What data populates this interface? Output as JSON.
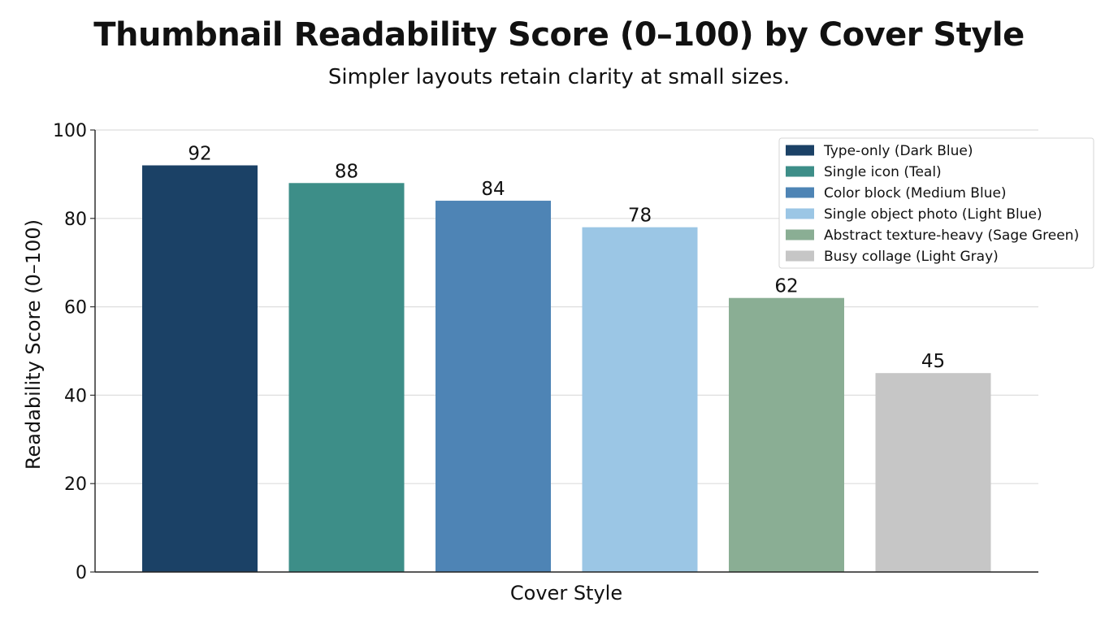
{
  "chart_data": {
    "type": "bar",
    "title": "Thumbnail Readability Score (0–100) by Cover Style",
    "subtitle": "Simpler layouts retain clarity at small sizes.",
    "xlabel": "Cover Style",
    "ylabel": "Readability Score (0–100)",
    "ylim": [
      0,
      100
    ],
    "yticks": [
      0,
      20,
      40,
      60,
      80,
      100
    ],
    "ytick_labels": [
      "0",
      "20",
      "40",
      "60",
      "80",
      "100"
    ],
    "grid": true,
    "legend_position": "top-right",
    "categories": [
      "Type-only (Dark Blue)",
      "Single icon (Teal)",
      "Color block (Medium Blue)",
      "Single object photo (Light Blue)",
      "Abstract texture-heavy (Sage Green)",
      "Busy collage (Light Gray)"
    ],
    "values": [
      92,
      88,
      84,
      78,
      62,
      45
    ],
    "value_labels": [
      "92",
      "88",
      "84",
      "78",
      "62",
      "45"
    ],
    "colors": [
      "#1b4166",
      "#3d8e88",
      "#4e84b5",
      "#9bc6e5",
      "#8aae94",
      "#c6c6c6"
    ],
    "legend": [
      "Type-only (Dark Blue)",
      "Single icon (Teal)",
      "Color block (Medium Blue)",
      "Single object photo (Light Blue)",
      "Abstract texture-heavy (Sage Green)",
      "Busy collage (Light Gray)"
    ]
  }
}
